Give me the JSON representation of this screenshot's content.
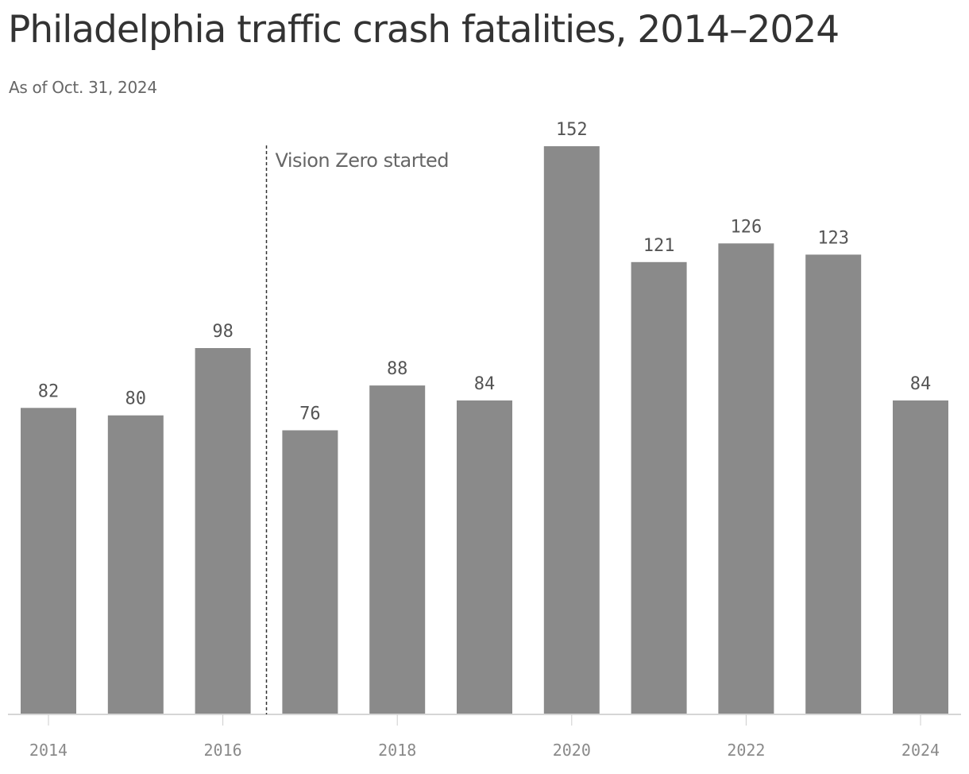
{
  "header": {
    "title": "Philadelphia traffic crash fatalities, 2014–2024",
    "subtitle": "As of Oct. 31, 2024"
  },
  "colors": {
    "bar": "#8a8a8a",
    "title": "#333333",
    "subtitle": "#666666"
  },
  "chart_data": {
    "type": "bar",
    "title": "Philadelphia traffic crash fatalities, 2014–2024",
    "subtitle": "As of Oct. 31, 2024",
    "categories": [
      2014,
      2015,
      2016,
      2017,
      2018,
      2019,
      2020,
      2021,
      2022,
      2023,
      2024
    ],
    "values": [
      82,
      80,
      98,
      76,
      88,
      84,
      152,
      121,
      126,
      123,
      84
    ],
    "x_tick_labels": [
      "2014",
      "2016",
      "2018",
      "2020",
      "2022",
      "2024"
    ],
    "xlabel": "",
    "ylabel": "",
    "ylim": [
      0,
      152
    ],
    "grid": false,
    "legend": "none",
    "data_labels": true,
    "annotations": [
      {
        "text": "Vision Zero started",
        "between": [
          2016,
          2017
        ],
        "style": "dashed-vertical-line"
      }
    ]
  }
}
